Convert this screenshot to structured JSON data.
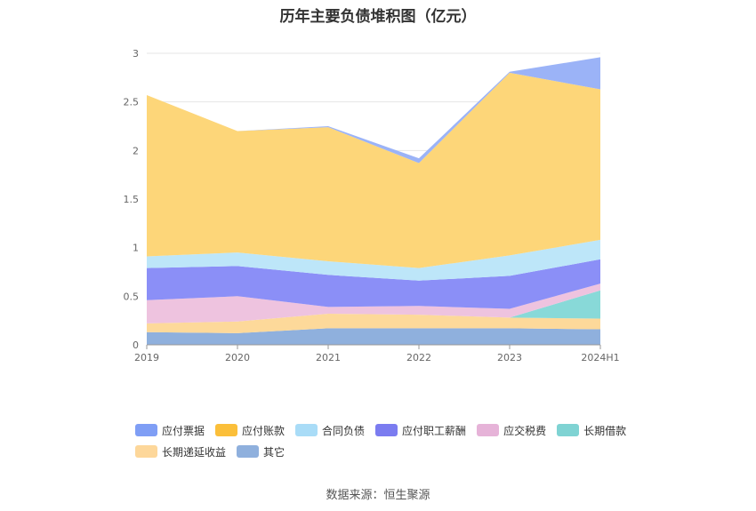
{
  "chart_data": {
    "type": "area",
    "stacked": true,
    "title": "历年主要负债堆积图（亿元）",
    "categories": [
      "2019",
      "2020",
      "2021",
      "2022",
      "2023",
      "2024H1"
    ],
    "ylim": [
      0,
      3
    ],
    "yticks": [
      "0",
      "0.5",
      "1",
      "1.5",
      "2",
      "2.5",
      "3"
    ],
    "grid": true,
    "legend_position": "bottom",
    "series": [
      {
        "name": "其它",
        "color": "#8fb0dd",
        "values": [
          0.13,
          0.12,
          0.17,
          0.17,
          0.17,
          0.16
        ]
      },
      {
        "name": "长期递延收益",
        "color": "#fdd99a",
        "values": [
          0.09,
          0.12,
          0.15,
          0.14,
          0.11,
          0.11
        ]
      },
      {
        "name": "长期借款",
        "color": "#88d9d8",
        "values": [
          0.0,
          0.0,
          0.0,
          0.0,
          0.0,
          0.29
        ]
      },
      {
        "name": "应交税费",
        "color": "#eec3df",
        "values": [
          0.24,
          0.26,
          0.07,
          0.09,
          0.09,
          0.07
        ]
      },
      {
        "name": "应付职工薪酬",
        "color": "#8b8ff7",
        "values": [
          0.33,
          0.31,
          0.33,
          0.26,
          0.34,
          0.25
        ]
      },
      {
        "name": "合同负债",
        "color": "#bde6f9",
        "values": [
          0.12,
          0.14,
          0.14,
          0.13,
          0.21,
          0.2
        ]
      },
      {
        "name": "应付账款",
        "color": "#fdd679",
        "values": [
          1.66,
          1.25,
          1.38,
          1.08,
          1.88,
          1.55
        ]
      },
      {
        "name": "应付票据",
        "color": "#9bb3f7",
        "values": [
          0.0,
          0.0,
          0.01,
          0.05,
          0.01,
          0.33
        ]
      }
    ]
  },
  "legend": {
    "items": [
      {
        "label": "应付票据",
        "color": "#7f9ef5"
      },
      {
        "label": "应付账款",
        "color": "#fbbf3a"
      },
      {
        "label": "合同负债",
        "color": "#a9dcf7"
      },
      {
        "label": "应付职工薪酬",
        "color": "#7b7cf0"
      },
      {
        "label": "应交税费",
        "color": "#e6b3d8"
      },
      {
        "label": "长期借款",
        "color": "#7fd3d3"
      },
      {
        "label": "长期递延收益",
        "color": "#fdd79a"
      },
      {
        "label": "其它",
        "color": "#8fb0dd"
      }
    ]
  },
  "source": "数据来源：恒生聚源"
}
